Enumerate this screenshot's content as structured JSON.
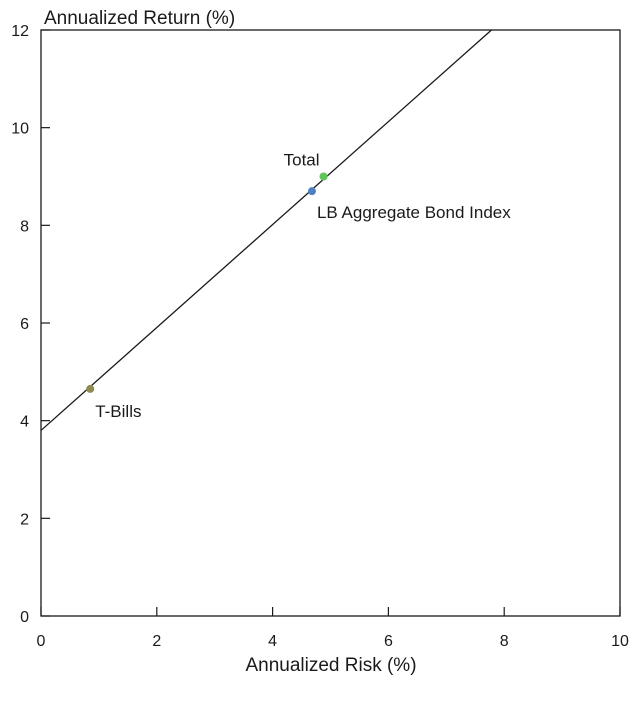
{
  "chart_data": {
    "type": "scatter",
    "title": "",
    "xlabel": "Annualized Risk (%)",
    "ylabel": "Annualized Return (%)",
    "xlim": [
      0,
      10
    ],
    "ylim": [
      0,
      12
    ],
    "x_ticks": [
      "0",
      "2",
      "4",
      "6",
      "8",
      "10"
    ],
    "y_ticks": [
      "0",
      "2",
      "4",
      "6",
      "8",
      "10",
      "12"
    ],
    "grid": false,
    "points": [
      {
        "label": "T-Bills",
        "x": 0.85,
        "y": 4.65,
        "color": "#8f8a4f"
      },
      {
        "label": "LB Aggregate Bond Index",
        "x": 4.68,
        "y": 8.7,
        "color": "#4f7fc4"
      },
      {
        "label": "Total",
        "x": 4.88,
        "y": 9.0,
        "color": "#5fc45a"
      }
    ],
    "line": {
      "x": [
        0,
        7.78
      ],
      "y": [
        3.8,
        12
      ]
    }
  }
}
